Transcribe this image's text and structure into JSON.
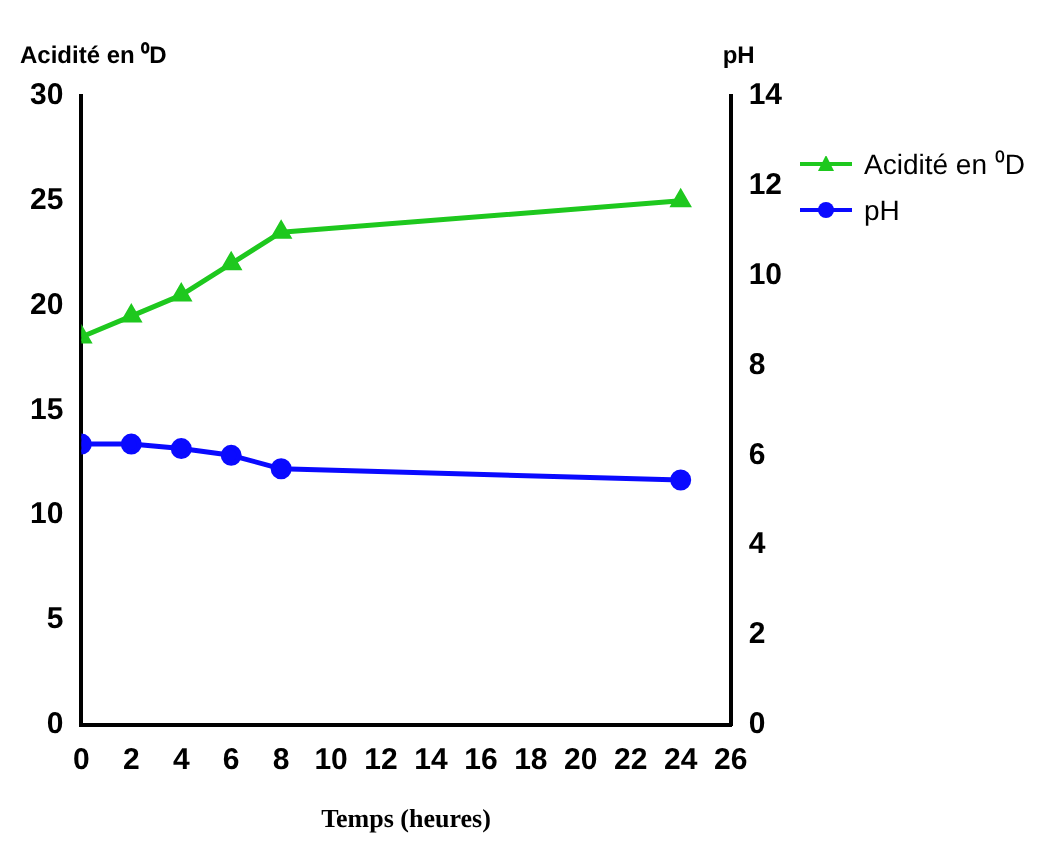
{
  "chart_data": {
    "type": "line",
    "xlabel": "Temps (heures)",
    "ylabel": "Acidité en ⁰D",
    "y2label": "pH",
    "x": [
      0,
      2,
      4,
      6,
      8,
      24
    ],
    "series": [
      {
        "name": "Acidité en ⁰D",
        "color": "#1ec81e",
        "marker": "triangle",
        "values": [
          18.5,
          19.5,
          20.5,
          22,
          23.5,
          25
        ]
      },
      {
        "name": "pH",
        "color": "#0a0aff",
        "marker": "circle",
        "axis": "y2",
        "values": [
          6.25,
          6.25,
          6.15,
          6.0,
          5.7,
          5.45
        ]
      }
    ],
    "xlim": [
      0,
      26
    ],
    "xticks": [
      0,
      2,
      4,
      6,
      8,
      10,
      12,
      14,
      16,
      18,
      20,
      22,
      24,
      26
    ],
    "ylim": [
      0,
      30
    ],
    "yticks": [
      0,
      5,
      10,
      15,
      20,
      25,
      30
    ],
    "y2lim": [
      0,
      14
    ],
    "y2ticks": [
      0,
      2,
      4,
      6,
      8,
      10,
      12,
      14
    ],
    "grid": false,
    "legend": "right",
    "line_style": "solid"
  }
}
